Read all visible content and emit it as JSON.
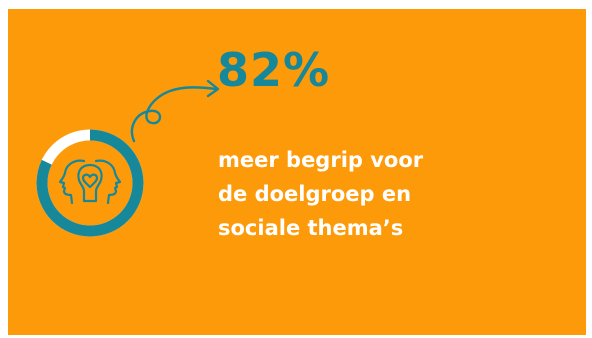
{
  "infographic": {
    "percentage_text": "82%",
    "percentage_value": 82,
    "description_lines": [
      "meer begrip voor",
      "de doelgroep en",
      "sociale thema’s"
    ],
    "icon": "heads-with-heart-icon"
  },
  "colors": {
    "background": "#fd9a0a",
    "accent_teal": "#17889a",
    "ring_track": "#ffffff",
    "text": "#ffffff"
  }
}
